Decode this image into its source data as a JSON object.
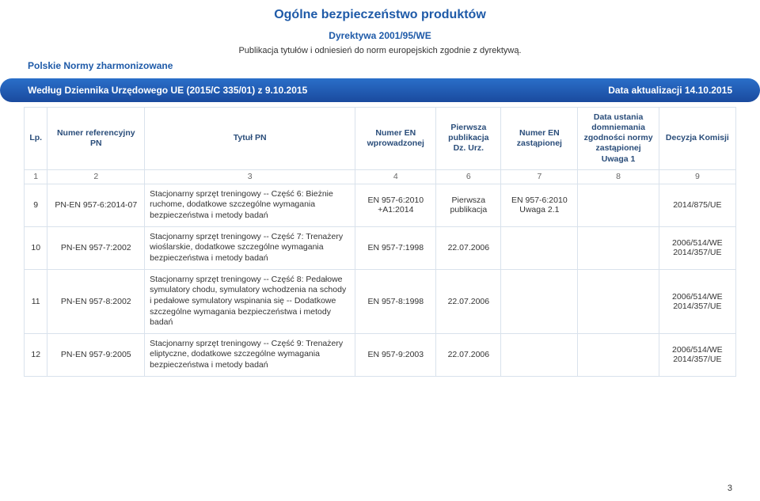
{
  "colors": {
    "accent": "#1e5aa8",
    "text": "#333333",
    "header_text": "#2a4d7a",
    "border": "#d9e2ec",
    "bg": "#ffffff",
    "bar_gradient_from": "#2a6fc9",
    "bar_gradient_to": "#1a4a9e"
  },
  "header": {
    "main_title": "Ogólne bezpieczeństwo produktów",
    "directive": "Dyrektywa 2001/95/WE",
    "publication_note": "Publikacja tytułów i odniesień do norm europejskich zgodnie z dyrektywą.",
    "section_label": "Polskie Normy zharmonizowane"
  },
  "bar": {
    "left": "Według Dziennika Urzędowego UE (2015/C 335/01) z 9.10.2015",
    "right": "Data aktualizacji 14.10.2015"
  },
  "table": {
    "columns": [
      {
        "key": "lp",
        "label": "Lp.",
        "num": "1"
      },
      {
        "key": "ref",
        "label": "Numer referencyjny PN",
        "num": "2"
      },
      {
        "key": "title",
        "label": "Tytuł PN",
        "num": "3"
      },
      {
        "key": "en_intro",
        "label": "Numer EN wprowadzonej",
        "num": "4"
      },
      {
        "key": "pub",
        "label": "Pierwsza publikacja Dz. Urz.",
        "num": "6"
      },
      {
        "key": "en_rep",
        "label": "Numer EN zastąpionej",
        "num": "7"
      },
      {
        "key": "cessation",
        "label": "Data ustania domniemania zgodności normy zastąpionej Uwaga 1",
        "num": "8"
      },
      {
        "key": "decision",
        "label": "Decyzja Komisji",
        "num": "9"
      }
    ],
    "rows": [
      {
        "lp": "9",
        "ref": "PN-EN 957-6:2014-07",
        "title": "Stacjonarny sprzęt treningowy -- Część 6: Bieżnie ruchome, dodatkowe szczególne wymagania bezpieczeństwa i metody badań",
        "en_intro": "EN 957-6:2010 +A1:2014",
        "pub": "Pierwsza publikacja",
        "en_rep": "EN 957-6:2010 Uwaga 2.1",
        "cessation": "",
        "decision": "2014/875/UE"
      },
      {
        "lp": "10",
        "ref": "PN-EN 957-7:2002",
        "title": "Stacjonarny sprzęt treningowy -- Część 7: Trenażery wioślarskie, dodatkowe szczególne wymagania bezpieczeństwa i metody badań",
        "en_intro": "EN 957-7:1998",
        "pub": "22.07.2006",
        "en_rep": "",
        "cessation": "",
        "decision": "2006/514/WE 2014/357/UE"
      },
      {
        "lp": "11",
        "ref": "PN-EN 957-8:2002",
        "title": "Stacjonarny sprzęt treningowy -- Część 8: Pedałowe symulatory chodu, symulatory wchodzenia na schody i pedałowe symulatory wspinania się -- Dodatkowe szczególne wymagania bezpieczeństwa i metody badań",
        "en_intro": "EN 957-8:1998",
        "pub": "22.07.2006",
        "en_rep": "",
        "cessation": "",
        "decision": "2006/514/WE 2014/357/UE"
      },
      {
        "lp": "12",
        "ref": "PN-EN 957-9:2005",
        "title": "Stacjonarny sprzęt treningowy -- Część 9: Trenażery eliptyczne, dodatkowe szczególne wymagania bezpieczeństwa i metody badań",
        "en_intro": "EN 957-9:2003",
        "pub": "22.07.2006",
        "en_rep": "",
        "cessation": "",
        "decision": "2006/514/WE 2014/357/UE"
      }
    ]
  },
  "page_number": "3"
}
